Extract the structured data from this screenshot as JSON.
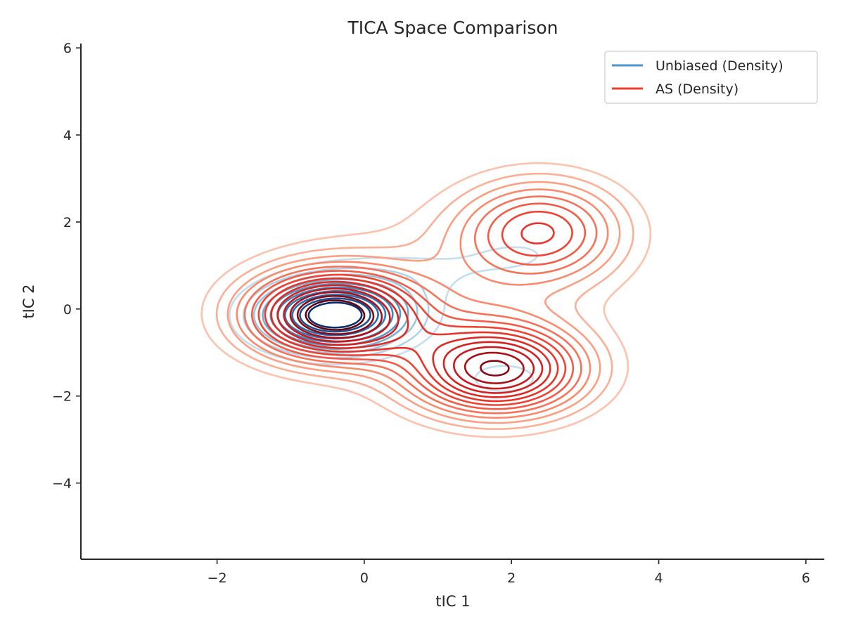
{
  "chart_data": {
    "type": "contour",
    "title": "TICA Space Comparison",
    "xlabel": "tIC 1",
    "ylabel": "tIC 2",
    "xlim": [
      -3.85,
      6.25
    ],
    "ylim": [
      -5.75,
      6.1
    ],
    "xticks": [
      -2,
      0,
      2,
      4,
      6
    ],
    "yticks": [
      -4,
      -2,
      0,
      2,
      4,
      6
    ],
    "xtick_labels": [
      "−2",
      "0",
      "2",
      "4",
      "6"
    ],
    "ytick_labels": [
      "−4",
      "−2",
      "0",
      "2",
      "4",
      "6"
    ],
    "grid": false,
    "legend_position": "top-right",
    "series": [
      {
        "name": "Unbiased (Density)",
        "colormap": "Blues",
        "legend_color": "#4a98c9",
        "components": [
          {
            "cx": -0.4,
            "cy": -0.15,
            "sx": 0.7,
            "sy": 0.55,
            "w": 1.0
          },
          {
            "cx": 0.8,
            "cy": 0.9,
            "sx": 1.0,
            "sy": 0.5,
            "w": 0.12
          },
          {
            "cx": 1.9,
            "cy": -1.6,
            "sx": 0.4,
            "sy": 0.3,
            "w": 0.2
          },
          {
            "cx": 2.2,
            "cy": 1.3,
            "sx": 0.6,
            "sy": 0.4,
            "w": 0.1
          }
        ],
        "levels": 10
      },
      {
        "name": "AS (Density)",
        "colormap": "Reds",
        "legend_color": "#e8402f",
        "components": [
          {
            "cx": -0.45,
            "cy": -0.15,
            "sx": 0.8,
            "sy": 0.7,
            "w": 1.0
          },
          {
            "cx": 1.8,
            "cy": -1.4,
            "sx": 0.85,
            "sy": 0.75,
            "w": 0.9
          },
          {
            "cx": 2.4,
            "cy": 1.8,
            "sx": 0.8,
            "sy": 0.85,
            "w": 0.55
          },
          {
            "cx": 0.8,
            "cy": 0.5,
            "sx": 1.6,
            "sy": 1.3,
            "w": 0.15
          }
        ],
        "levels": 14
      }
    ]
  }
}
